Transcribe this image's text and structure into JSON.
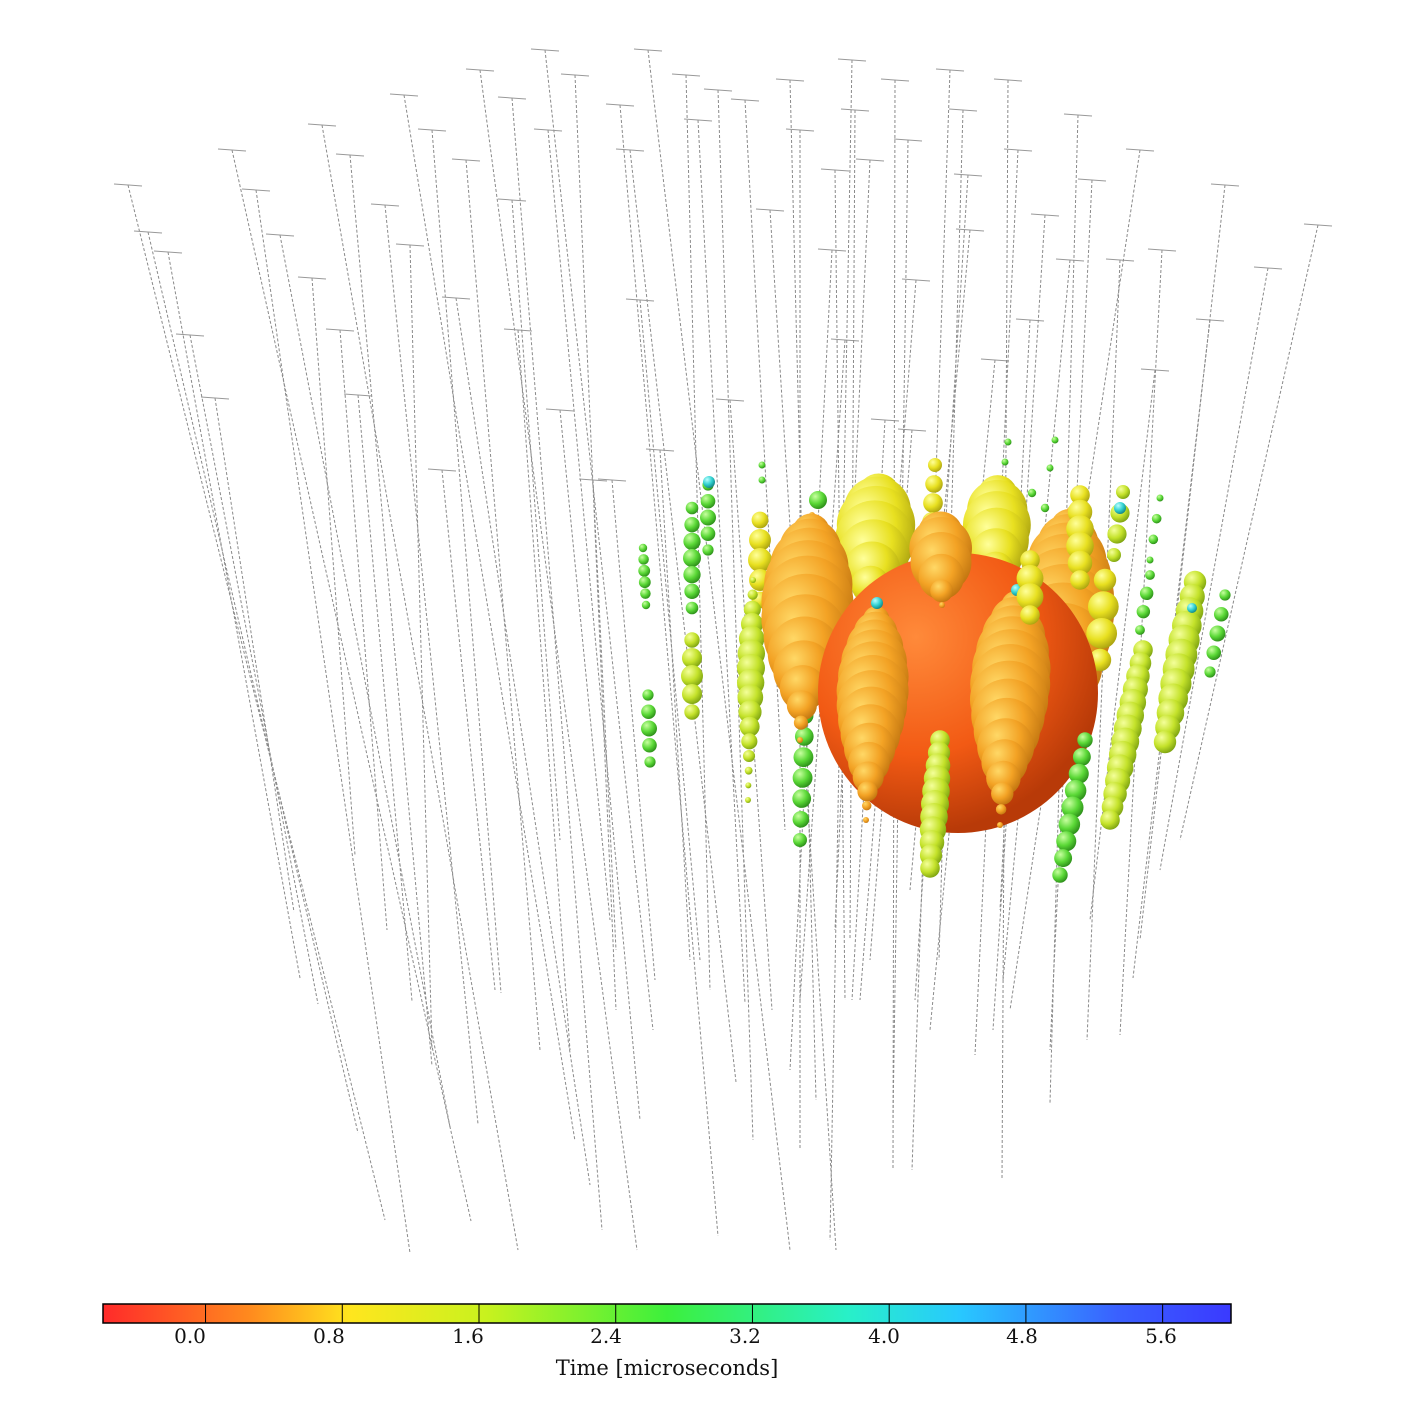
{
  "figure": {
    "description_type": "IceCube neutrino event display",
    "colorbar": {
      "title": "Time [microseconds]",
      "range": [
        -0.6,
        6.0
      ],
      "ticks": [
        "0.0",
        "0.8",
        "1.6",
        "2.4",
        "3.2",
        "4.0",
        "4.8",
        "5.6"
      ],
      "tick_values": [
        0.0,
        0.8,
        1.6,
        2.4,
        3.2,
        4.0,
        4.8,
        5.6
      ],
      "colors": [
        "#ff2a2a",
        "#ff8a1e",
        "#ffe61e",
        "#c8f21e",
        "#3cf03c",
        "#28f0c8",
        "#28c8ff",
        "#3a3aff"
      ]
    },
    "palette": {
      "string_line": "#8a8a8a",
      "hit_red": "#ff2a00",
      "hit_orange": "#f59a12",
      "hit_yellow": "#f0e020",
      "hit_green": "#5ae036",
      "hit_cyan": "#30d8d8"
    }
  }
}
